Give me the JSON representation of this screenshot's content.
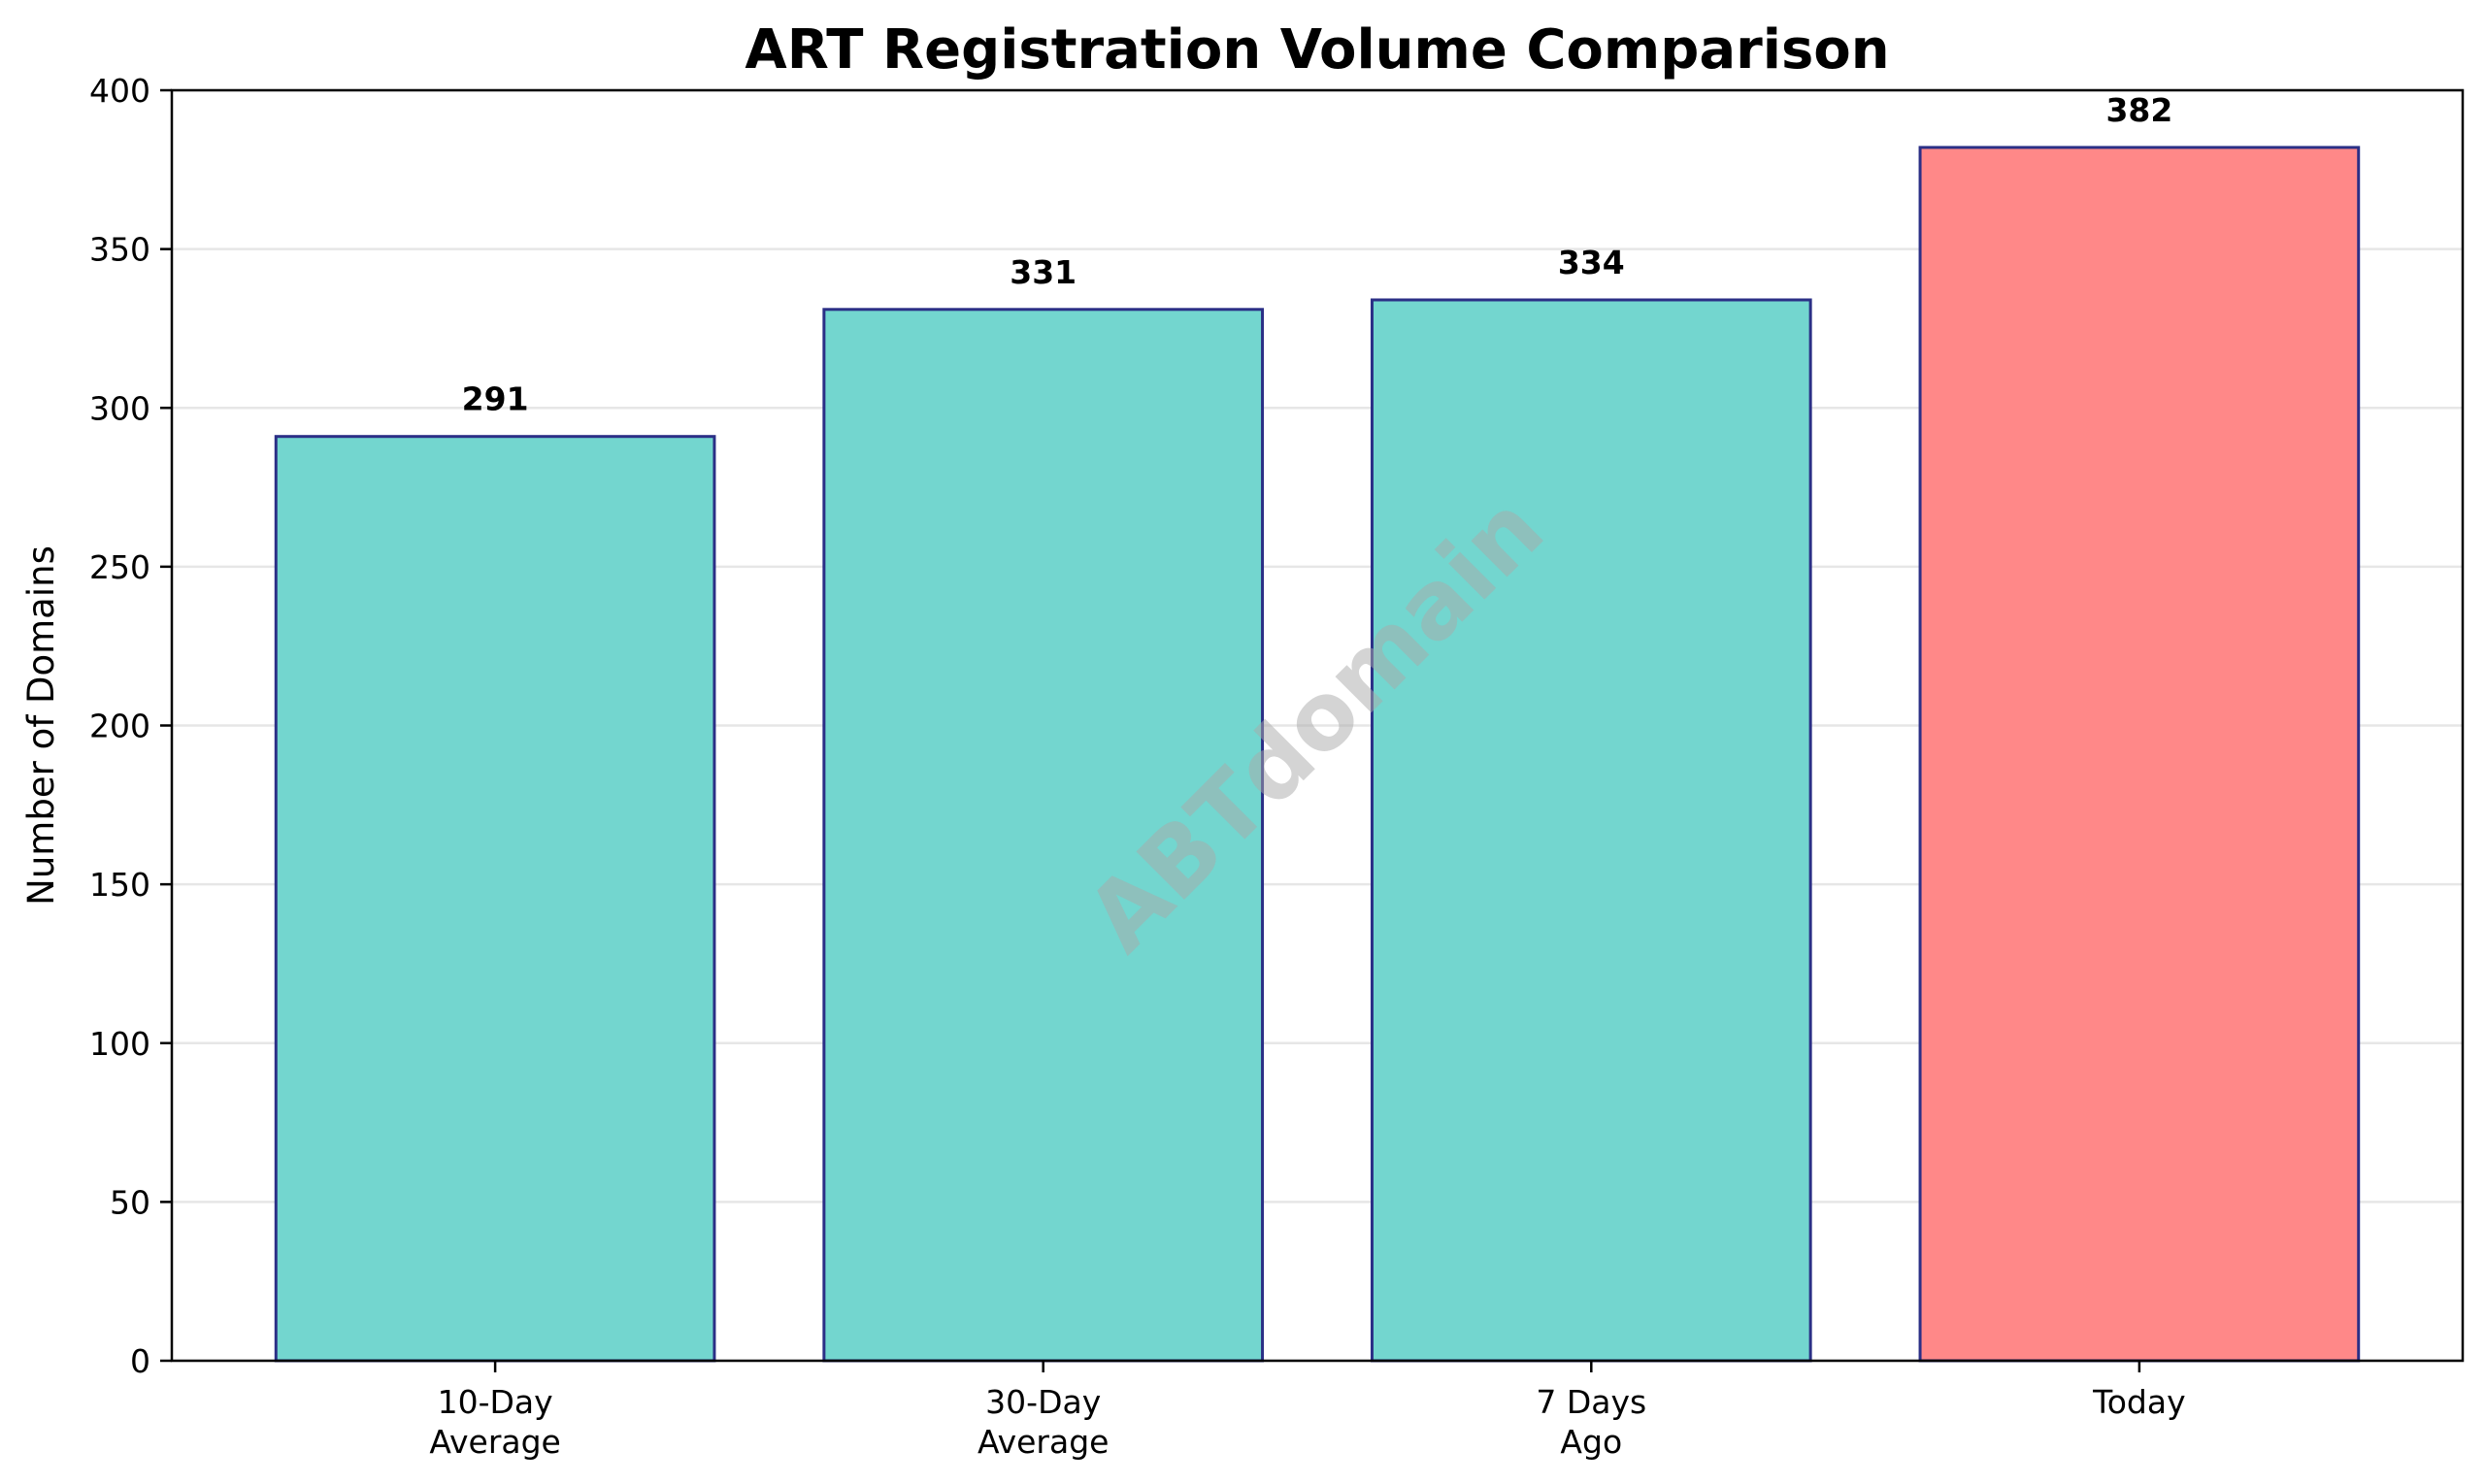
{
  "chart_data": {
    "type": "bar",
    "title": "ART Registration Volume Comparison",
    "xlabel": "",
    "ylabel": "Number of Domains",
    "categories": [
      [
        "10-Day",
        "Average"
      ],
      [
        "30-Day",
        "Average"
      ],
      [
        "7 Days",
        "Ago"
      ],
      [
        "Today"
      ]
    ],
    "values": [
      291,
      331,
      334,
      382
    ],
    "value_labels": [
      "291",
      "331",
      "334",
      "382"
    ],
    "bar_colors": [
      "#73d6cf",
      "#73d6cf",
      "#73d6cf",
      "#ff8888"
    ],
    "bar_edge_color": "#2b2f86",
    "ylim": [
      0,
      400
    ],
    "yticks": [
      0,
      50,
      100,
      150,
      200,
      250,
      300,
      350,
      400
    ],
    "ytick_labels": [
      "0",
      "50",
      "100",
      "150",
      "200",
      "250",
      "300",
      "350",
      "400"
    ],
    "grid": "y",
    "legend": "none",
    "watermark": "ABTdomain"
  }
}
